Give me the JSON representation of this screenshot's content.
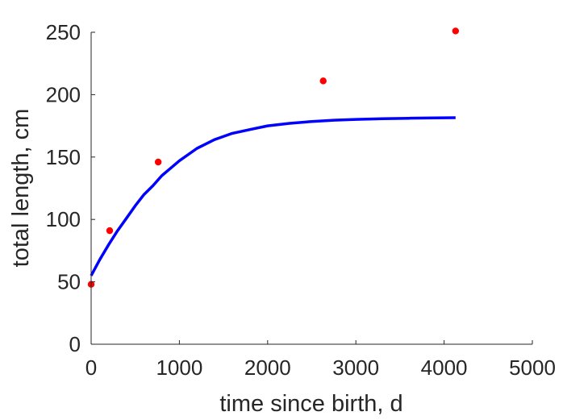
{
  "chart_data": {
    "type": "scatter",
    "title": "",
    "xlabel": "time since birth, d",
    "ylabel": "total length, cm",
    "xlim": [
      0,
      5000
    ],
    "ylim": [
      0,
      250
    ],
    "xticks": [
      "0",
      "1000",
      "2000",
      "3000",
      "4000",
      "5000"
    ],
    "yticks": [
      "0",
      "50",
      "100",
      "150",
      "200",
      "250"
    ],
    "grid": false,
    "series": [
      {
        "kind": "scatter",
        "color": "#ff0000",
        "points": [
          {
            "x": 0,
            "y": 48
          },
          {
            "x": 210,
            "y": 91
          },
          {
            "x": 760,
            "y": 146
          },
          {
            "x": 2630,
            "y": 211
          },
          {
            "x": 4130,
            "y": 251
          }
        ]
      },
      {
        "kind": "line",
        "color": "#0000ff",
        "points": [
          {
            "x": 0,
            "y": 55
          },
          {
            "x": 100,
            "y": 68
          },
          {
            "x": 200,
            "y": 80
          },
          {
            "x": 300,
            "y": 91
          },
          {
            "x": 400,
            "y": 101
          },
          {
            "x": 500,
            "y": 111
          },
          {
            "x": 600,
            "y": 120
          },
          {
            "x": 700,
            "y": 127
          },
          {
            "x": 800,
            "y": 135
          },
          {
            "x": 900,
            "y": 141
          },
          {
            "x": 1000,
            "y": 147
          },
          {
            "x": 1200,
            "y": 157
          },
          {
            "x": 1400,
            "y": 164
          },
          {
            "x": 1600,
            "y": 169
          },
          {
            "x": 1800,
            "y": 172
          },
          {
            "x": 2000,
            "y": 175
          },
          {
            "x": 2250,
            "y": 177
          },
          {
            "x": 2500,
            "y": 178.5
          },
          {
            "x": 2750,
            "y": 179.5
          },
          {
            "x": 3000,
            "y": 180.2
          },
          {
            "x": 3300,
            "y": 180.7
          },
          {
            "x": 3600,
            "y": 181.1
          },
          {
            "x": 3900,
            "y": 181.3
          },
          {
            "x": 4130,
            "y": 181.5
          }
        ]
      }
    ]
  }
}
